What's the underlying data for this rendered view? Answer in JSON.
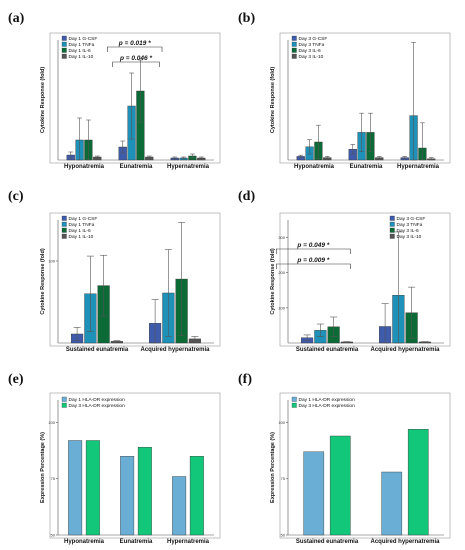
{
  "colors": {
    "gcsf": "#3f5bab",
    "tnfa": "#1e91b9",
    "il6": "#0b6a36",
    "il10": "#555555",
    "hla_day1": "#6aaed6",
    "hla_day3": "#12c77a"
  },
  "chart_data": [
    {
      "panel": "(a)",
      "type": "bar",
      "ylabel": "Cytokine Response (fold)",
      "ylim": [
        0,
        120
      ],
      "yticks": [],
      "categories": [
        "Hyponatremia",
        "Eunatremia",
        "Hypernatremia"
      ],
      "series": [
        {
          "name": "Day 1 G-CSF",
          "values": [
            5,
            13,
            2
          ],
          "err": [
            3,
            6,
            1
          ]
        },
        {
          "name": "Day 1 TNFa",
          "values": [
            20,
            54,
            2
          ],
          "err": [
            22,
            33,
            1
          ]
        },
        {
          "name": "Day 1 IL-6",
          "values": [
            20,
            69,
            4
          ],
          "err": [
            20,
            31,
            2
          ]
        },
        {
          "name": "Day 1 IL-10",
          "values": [
            3,
            3,
            2
          ],
          "err": [
            1,
            1,
            1
          ]
        }
      ],
      "annotations": [
        {
          "text": "p = 0.019 *",
          "from": 0,
          "to": 2
        },
        {
          "text": "p = 0.046 *",
          "from": 1,
          "to": 2
        }
      ]
    },
    {
      "panel": "(b)",
      "type": "bar",
      "ylabel": "Cytokine Response (fold)",
      "ylim": [
        0,
        100
      ],
      "yticks": [],
      "categories": [
        "Hyponatremia",
        "Eunatremia",
        "Hypernatremia"
      ],
      "series": [
        {
          "name": "Day 3 G-CSF",
          "values": [
            3,
            9,
            2
          ],
          "err": [
            1,
            4,
            1
          ]
        },
        {
          "name": "Day 3 TNFa",
          "values": [
            11,
            23,
            37
          ],
          "err": [
            6,
            16,
            61
          ]
        },
        {
          "name": "Day 3 IL-6",
          "values": [
            15,
            23,
            10
          ],
          "err": [
            14,
            16,
            21
          ]
        },
        {
          "name": "Day 3 IL-10",
          "values": [
            2,
            2,
            1
          ],
          "err": [
            1,
            1,
            1
          ]
        }
      ],
      "annotations": []
    },
    {
      "panel": "(c)",
      "type": "bar",
      "ylabel": "Cytokine Response (fold)",
      "ylim": [
        0,
        150
      ],
      "yticks": [
        100
      ],
      "categories": [
        "Sustained eunatremia",
        "Acquired hypernatremia"
      ],
      "series": [
        {
          "name": "Day 1 G-CSF",
          "values": [
            11,
            24
          ],
          "err": [
            8,
            29
          ]
        },
        {
          "name": "Day 1 TNFa",
          "values": [
            60,
            61
          ],
          "err": [
            46,
            53
          ]
        },
        {
          "name": "Day 1 IL-6",
          "values": [
            70,
            78
          ],
          "err": [
            37,
            69
          ]
        },
        {
          "name": "Day 1 IL-10",
          "values": [
            2,
            5
          ],
          "err": [
            1,
            3
          ]
        }
      ],
      "annotations": []
    },
    {
      "panel": "(d)",
      "type": "bar",
      "ylabel": "Cytokine Response (fold)",
      "ylim": [
        0,
        350
      ],
      "yticks": [
        100,
        200,
        300
      ],
      "categories": [
        "Sustained eunatremia",
        "Acquired hypernatremia"
      ],
      "series": [
        {
          "name": "Day 3 G-CSF",
          "values": [
            15,
            47
          ],
          "err": [
            8,
            65
          ]
        },
        {
          "name": "Day 3 TNFa",
          "values": [
            36,
            136
          ],
          "err": [
            18,
            180
          ]
        },
        {
          "name": "Day 3 IL-6",
          "values": [
            46,
            86
          ],
          "err": [
            28,
            73
          ]
        },
        {
          "name": "Day 3 IL-10",
          "values": [
            3,
            3
          ],
          "err": [
            1,
            1
          ]
        }
      ],
      "annotations": [
        {
          "text": "p = 0.049 *",
          "from": 0,
          "to": 1
        },
        {
          "text": "p = 0.009 *",
          "from": 0,
          "to": 1
        }
      ]
    },
    {
      "panel": "(e)",
      "type": "bar",
      "ylabel": "Expression Percentage (%)",
      "ylim": [
        50,
        110
      ],
      "yticks": [
        100,
        75,
        50
      ],
      "categories": [
        "Hyponatremia",
        "Eunatremia",
        "Hypernatremia"
      ],
      "series": [
        {
          "name": "Day 1 HLA-DR expression",
          "values": [
            92,
            85,
            76
          ]
        },
        {
          "name": "Day 3 HLA-DR expression",
          "values": [
            92,
            89,
            85
          ]
        }
      ],
      "annotations": []
    },
    {
      "panel": "(f)",
      "type": "bar",
      "ylabel": "Expression Percentage (%)",
      "ylim": [
        50,
        110
      ],
      "yticks": [
        100,
        75,
        50
      ],
      "categories": [
        "Sustained eunatremia",
        "Acquired hypernatremia"
      ],
      "series": [
        {
          "name": "Day 1 HLA-DR expression",
          "values": [
            87,
            78
          ]
        },
        {
          "name": "Day 3 HLA-DR expression",
          "values": [
            94,
            97
          ]
        }
      ],
      "annotations": []
    }
  ]
}
